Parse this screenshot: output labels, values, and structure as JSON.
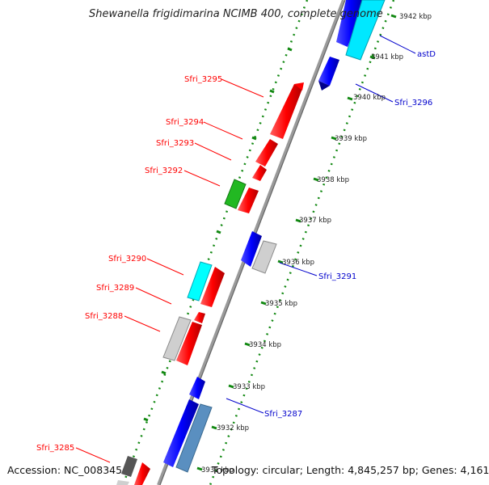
{
  "title": "Shewanella frigidimarina NCIMB 400, complete genome",
  "footer": {
    "accession": "Accession: NC_008345",
    "stats": "Topology: circular; Length: 4,845,257 bp; Genes: 4,161"
  },
  "ticks": [
    "3942 kbp",
    "3941 kbp",
    "3940 kbp",
    "3939 kbp",
    "3938 kbp",
    "3937 kbp",
    "3936 kbp",
    "3935 kbp",
    "3934 kbp",
    "3933 kbp",
    "3932 kbp",
    "3931 kbp"
  ],
  "gene_labels": {
    "left": [
      "Sfri_3295",
      "Sfri_3294",
      "Sfri_3293",
      "Sfri_3292",
      "Sfri_3290",
      "Sfri_3289",
      "Sfri_3288",
      "Sfri_3285"
    ],
    "right": [
      "astD",
      "Sfri_3296",
      "Sfri_3291",
      "Sfri_3287"
    ]
  },
  "colors": {
    "forward": "#ff0000",
    "reverse": "#0000ff",
    "cyan": "#00ffff",
    "gray": "#c8c8c8",
    "green": "#22b822",
    "steel": "#5a8fc0",
    "dark": "#555555",
    "dots": "#118811",
    "backbone": "#888888"
  }
}
